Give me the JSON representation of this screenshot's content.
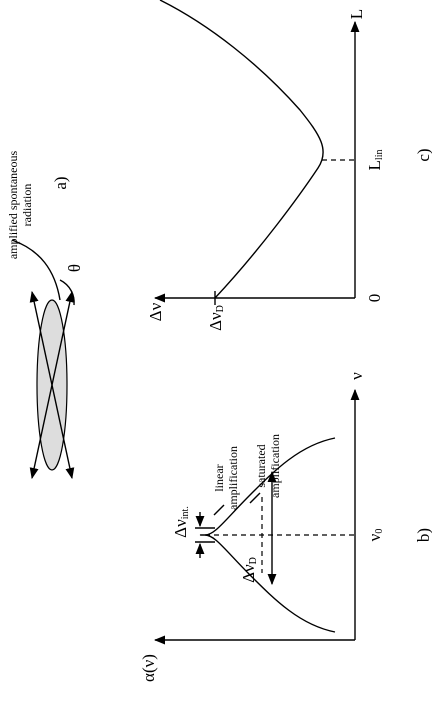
{
  "panel_a": {
    "caption_lines": [
      "amplified spontaneous",
      "radiation"
    ],
    "angle": "θ",
    "tag": "a)"
  },
  "panel_b": {
    "y_axis": "α(ν)",
    "x_axis": "ν",
    "center": {
      "symbol": "ν",
      "sub": "0"
    },
    "intrinsic_width": {
      "symbol": "Δν",
      "sub": "int."
    },
    "linear_lines": [
      "linear",
      "amplification"
    ],
    "saturated_lines": [
      "saturated",
      "amplification"
    ],
    "doppler_width": {
      "symbol": "Δν",
      "sub": "D"
    },
    "tag": "b)"
  },
  "panel_c": {
    "y_axis": "Δν",
    "x_axis": "L",
    "origin": "0",
    "start": {
      "symbol": "Δν",
      "sub": "D"
    },
    "l_lin": {
      "symbol": "L",
      "sub": "lin"
    },
    "tag": "c)"
  }
}
